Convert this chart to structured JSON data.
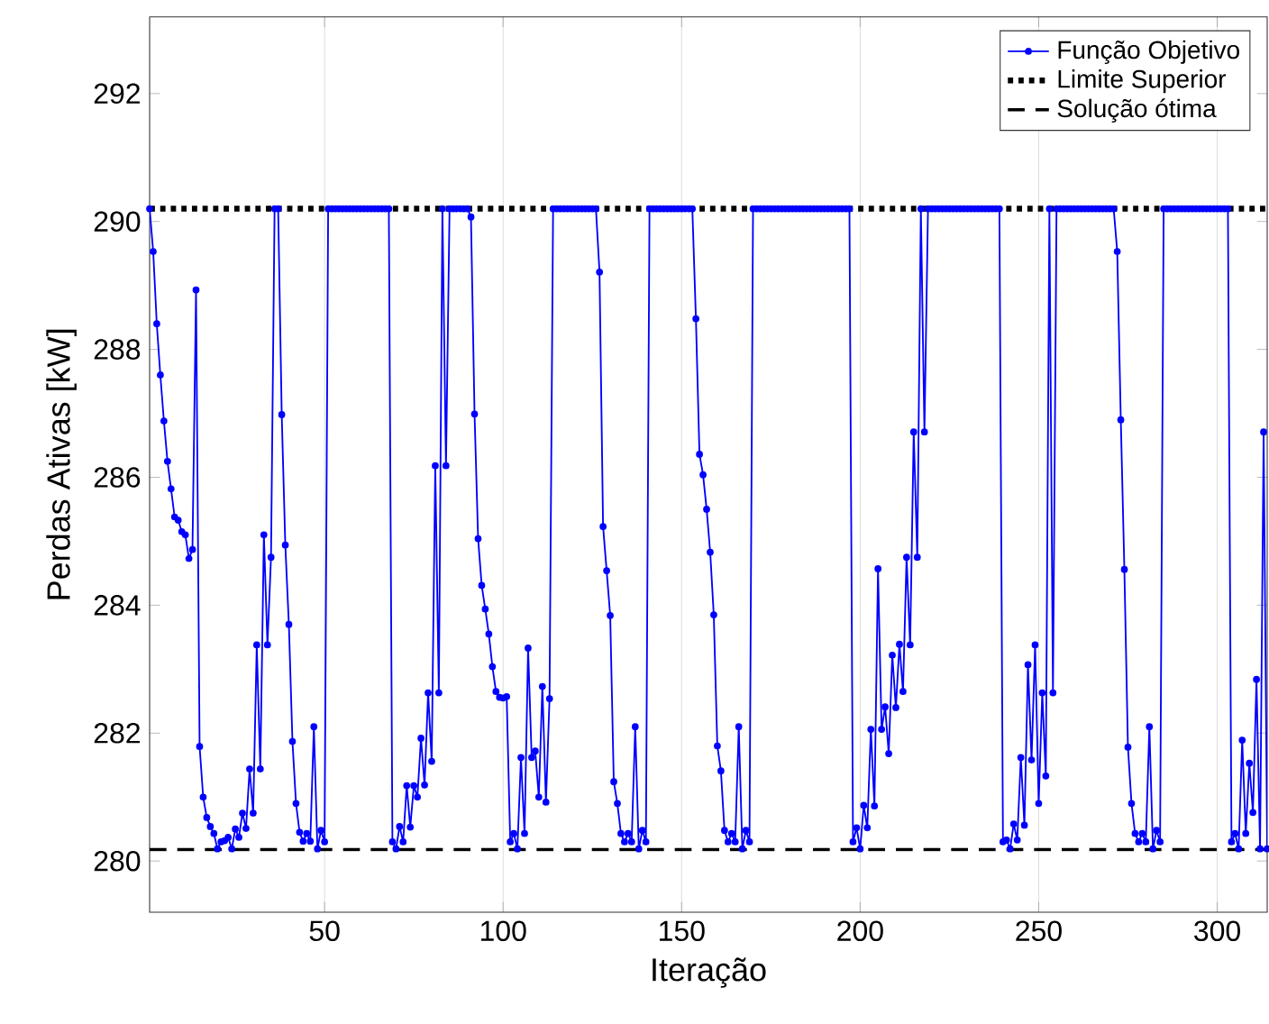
{
  "chart_data": {
    "type": "line",
    "xlabel": "Iteração",
    "ylabel": "Perdas Ativas [kW]",
    "xlim": [
      1,
      314
    ],
    "ylim": [
      279.2,
      293.2
    ],
    "xticks": [
      50,
      100,
      150,
      200,
      250,
      300
    ],
    "yticks": [
      280,
      282,
      284,
      286,
      288,
      290,
      292
    ],
    "grid": "x",
    "legend": "top right",
    "marker": "circle",
    "line_style": "solid",
    "x": [
      1,
      2,
      3,
      4,
      5,
      6,
      7,
      8,
      9,
      10,
      11,
      12,
      13,
      14,
      15,
      16,
      17,
      18,
      19,
      20,
      21,
      22,
      23,
      24,
      25,
      26,
      27,
      28,
      29,
      30,
      31,
      32,
      33,
      34,
      35,
      36,
      37,
      38,
      39,
      40,
      41,
      42,
      43,
      44,
      45,
      46,
      47,
      48,
      49,
      50,
      51,
      52,
      53,
      54,
      55,
      56,
      57,
      58,
      59,
      60,
      61,
      62,
      63,
      64,
      65,
      66,
      67,
      68,
      69,
      70,
      71,
      72,
      73,
      74,
      75,
      76,
      77,
      78,
      79,
      80,
      81,
      82,
      83,
      84,
      85,
      86,
      87,
      88,
      89,
      90,
      91,
      92,
      93,
      94,
      95,
      96,
      97,
      98,
      99,
      100,
      101,
      102,
      103,
      104,
      105,
      106,
      107,
      108,
      109,
      110,
      111,
      112,
      113,
      114,
      115,
      116,
      117,
      118,
      119,
      120,
      121,
      122,
      123,
      124,
      125,
      126,
      127,
      128,
      129,
      130,
      131,
      132,
      133,
      134,
      135,
      136,
      137,
      138,
      139,
      140,
      141,
      142,
      143,
      144,
      145,
      146,
      147,
      148,
      149,
      150,
      151,
      152,
      153,
      154,
      155,
      156,
      157,
      158,
      159,
      160,
      161,
      162,
      163,
      164,
      165,
      166,
      167,
      168,
      169,
      170,
      171,
      172,
      173,
      174,
      175,
      176,
      177,
      178,
      179,
      180,
      181,
      182,
      183,
      184,
      185,
      186,
      187,
      188,
      189,
      190,
      191,
      192,
      193,
      194,
      195,
      196,
      197,
      198,
      199,
      200,
      201,
      202,
      203,
      204,
      205,
      206,
      207,
      208,
      209,
      210,
      211,
      212,
      213,
      214,
      215,
      216,
      217,
      218,
      219,
      220,
      221,
      222,
      223,
      224,
      225,
      226,
      227,
      228,
      229,
      230,
      231,
      232,
      233,
      234,
      235,
      236,
      237,
      238,
      239,
      240,
      241,
      242,
      243,
      244,
      245,
      246,
      247,
      248,
      249,
      250,
      251,
      252,
      253,
      254,
      255,
      256,
      257,
      258,
      259,
      260,
      261,
      262,
      263,
      264,
      265,
      266,
      267,
      268,
      269,
      270,
      271,
      272,
      273,
      274,
      275,
      276,
      277,
      278,
      279,
      280,
      281,
      282,
      283,
      284,
      285,
      286,
      287,
      288,
      289,
      290,
      291,
      292,
      293,
      294,
      295,
      296,
      297,
      298,
      299,
      300,
      301,
      302,
      303,
      304,
      305,
      306,
      307,
      308,
      309,
      310,
      311,
      312,
      313,
      314
    ],
    "series": [
      {
        "name": "Função Objetivo",
        "color": "#0000ff",
        "values": [
          290.2,
          289.53,
          288.4,
          287.6,
          286.88,
          286.25,
          285.82,
          285.38,
          285.33,
          285.15,
          285.1,
          284.73,
          284.87,
          288.93,
          281.79,
          281.0,
          280.68,
          280.54,
          280.43,
          280.19,
          280.3,
          280.32,
          280.37,
          280.19,
          280.5,
          280.37,
          280.75,
          280.51,
          281.44,
          280.75,
          283.38,
          281.44,
          285.1,
          283.38,
          284.75,
          290.2,
          290.2,
          286.98,
          284.94,
          283.7,
          281.87,
          280.9,
          280.45,
          280.31,
          280.43,
          280.31,
          282.1,
          280.19,
          280.48,
          280.3,
          290.2,
          290.2,
          290.2,
          290.2,
          290.2,
          290.2,
          290.2,
          290.2,
          290.2,
          290.2,
          290.2,
          290.2,
          290.2,
          290.2,
          290.2,
          290.2,
          290.2,
          290.2,
          280.3,
          280.19,
          280.54,
          280.3,
          281.18,
          280.53,
          281.18,
          281.0,
          281.92,
          281.19,
          282.63,
          281.56,
          286.18,
          282.63,
          290.2,
          286.18,
          290.2,
          290.2,
          290.2,
          290.2,
          290.2,
          290.2,
          290.07,
          286.99,
          285.04,
          284.31,
          283.94,
          283.55,
          283.04,
          282.65,
          282.56,
          282.55,
          282.57,
          280.3,
          280.43,
          280.19,
          281.62,
          280.43,
          283.33,
          281.62,
          281.72,
          281.0,
          282.73,
          280.92,
          282.54,
          290.2,
          290.2,
          290.2,
          290.2,
          290.2,
          290.2,
          290.2,
          290.2,
          290.2,
          290.2,
          290.2,
          290.2,
          290.2,
          289.21,
          285.23,
          284.54,
          283.84,
          281.24,
          280.9,
          280.43,
          280.3,
          280.43,
          280.3,
          282.1,
          280.19,
          280.48,
          280.3,
          290.2,
          290.2,
          290.2,
          290.2,
          290.2,
          290.2,
          290.2,
          290.2,
          290.2,
          290.2,
          290.2,
          290.2,
          290.2,
          288.48,
          286.36,
          286.04,
          285.5,
          284.83,
          283.85,
          281.8,
          281.41,
          280.48,
          280.3,
          280.43,
          280.3,
          282.1,
          280.19,
          280.48,
          280.3,
          290.2,
          290.2,
          290.2,
          290.2,
          290.2,
          290.2,
          290.2,
          290.2,
          290.2,
          290.2,
          290.2,
          290.2,
          290.2,
          290.2,
          290.2,
          290.2,
          290.2,
          290.2,
          290.2,
          290.2,
          290.2,
          290.2,
          290.2,
          290.2,
          290.2,
          290.2,
          290.2,
          290.2,
          280.3,
          280.52,
          280.19,
          280.87,
          280.52,
          282.06,
          280.86,
          284.57,
          282.06,
          282.41,
          281.68,
          283.22,
          282.4,
          283.39,
          282.65,
          284.75,
          283.38,
          286.71,
          284.75,
          290.2,
          286.71,
          290.2,
          290.2,
          290.2,
          290.2,
          290.2,
          290.2,
          290.2,
          290.2,
          290.2,
          290.2,
          290.2,
          290.2,
          290.2,
          290.2,
          290.2,
          290.2,
          290.2,
          290.2,
          290.2,
          290.2,
          290.2,
          280.3,
          280.33,
          280.19,
          280.58,
          280.33,
          281.62,
          280.56,
          283.07,
          281.58,
          283.38,
          280.9,
          282.63,
          281.33,
          290.2,
          282.63,
          290.2,
          290.2,
          290.2,
          290.2,
          290.2,
          290.2,
          290.2,
          290.2,
          290.2,
          290.2,
          290.2,
          290.2,
          290.2,
          290.2,
          290.2,
          290.2,
          290.2,
          289.53,
          286.9,
          284.56,
          281.78,
          280.9,
          280.43,
          280.3,
          280.43,
          280.3,
          282.1,
          280.19,
          280.48,
          280.3,
          290.2,
          290.2,
          290.2,
          290.2,
          290.2,
          290.2,
          290.2,
          290.2,
          290.2,
          290.2,
          290.2,
          290.2,
          290.2,
          290.2,
          290.2,
          290.2,
          290.2,
          290.2,
          290.2,
          280.3,
          280.43,
          280.19,
          281.89,
          280.43,
          281.53,
          280.76,
          282.84,
          280.19,
          286.71,
          280.19
        ]
      }
    ],
    "ref_lines": [
      {
        "axis": "y",
        "value": 290.2,
        "label": "Limite Superior",
        "color": "#000000",
        "line_style": "dotted"
      },
      {
        "axis": "y",
        "value": 280.18,
        "label": "Solução ótima",
        "color": "#000000",
        "line_style": "dashed"
      }
    ]
  }
}
